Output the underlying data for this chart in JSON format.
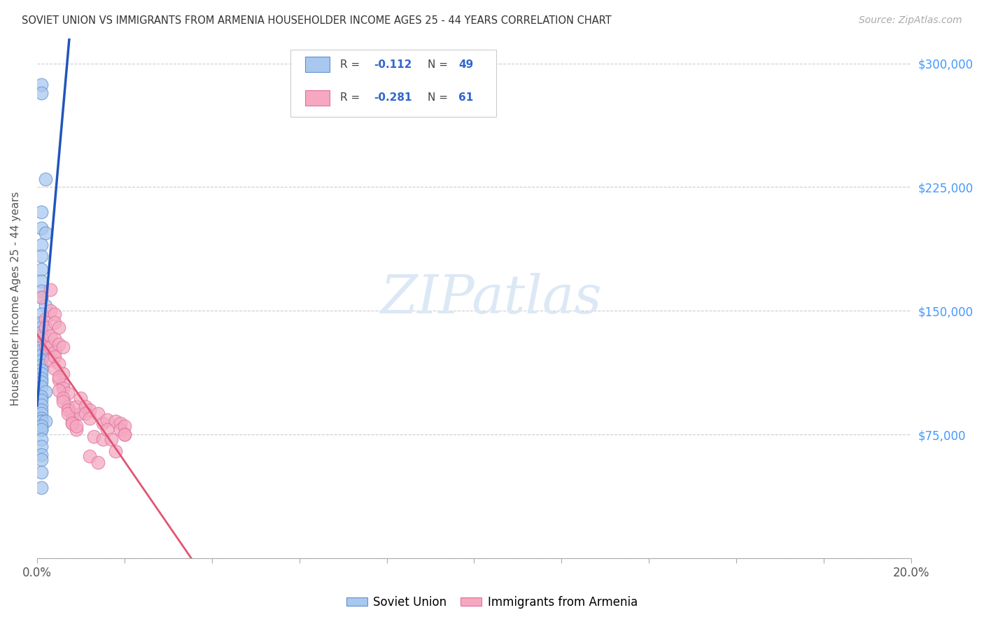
{
  "title": "SOVIET UNION VS IMMIGRANTS FROM ARMENIA HOUSEHOLDER INCOME AGES 25 - 44 YEARS CORRELATION CHART",
  "source": "Source: ZipAtlas.com",
  "ylabel": "Householder Income Ages 25 - 44 years",
  "legend1_label": "Soviet Union",
  "legend2_label": "Immigrants from Armenia",
  "legend1_R": "-0.112",
  "legend1_N": "49",
  "legend2_R": "-0.281",
  "legend2_N": "61",
  "blue_scatter_color": "#a8c8f0",
  "pink_scatter_color": "#f5a8c0",
  "blue_scatter_edge": "#6090d0",
  "pink_scatter_edge": "#e070a0",
  "blue_line_color": "#2255bb",
  "pink_line_color": "#e05575",
  "dashed_line_color": "#aabbdd",
  "ytick_color": "#4499ff",
  "grid_color": "#cccccc",
  "background_color": "#ffffff",
  "soviet_x": [
    0.001,
    0.001,
    0.002,
    0.001,
    0.001,
    0.002,
    0.001,
    0.001,
    0.001,
    0.001,
    0.001,
    0.001,
    0.002,
    0.001,
    0.001,
    0.001,
    0.001,
    0.001,
    0.001,
    0.001,
    0.001,
    0.001,
    0.001,
    0.001,
    0.001,
    0.001,
    0.001,
    0.001,
    0.001,
    0.002,
    0.001,
    0.001,
    0.001,
    0.001,
    0.001,
    0.001,
    0.001,
    0.001,
    0.001,
    0.001,
    0.002,
    0.001,
    0.001,
    0.001,
    0.001,
    0.001,
    0.001,
    0.001,
    0.001
  ],
  "soviet_y": [
    287000,
    282000,
    230000,
    210000,
    200000,
    197000,
    190000,
    183000,
    175000,
    168000,
    162000,
    158000,
    153000,
    148000,
    143000,
    140000,
    137000,
    133000,
    130000,
    128000,
    126000,
    123000,
    120000,
    117000,
    114000,
    112000,
    109000,
    107000,
    104000,
    101000,
    98000,
    96000,
    93000,
    90000,
    88000,
    85000,
    83000,
    80000,
    78000,
    83000,
    83000,
    80000,
    78000,
    72000,
    68000,
    63000,
    60000,
    52000,
    43000
  ],
  "armenia_x": [
    0.001,
    0.002,
    0.003,
    0.001,
    0.002,
    0.003,
    0.004,
    0.002,
    0.003,
    0.004,
    0.003,
    0.004,
    0.005,
    0.004,
    0.005,
    0.006,
    0.003,
    0.004,
    0.005,
    0.006,
    0.004,
    0.005,
    0.006,
    0.005,
    0.006,
    0.007,
    0.005,
    0.006,
    0.007,
    0.008,
    0.006,
    0.007,
    0.008,
    0.008,
    0.009,
    0.007,
    0.008,
    0.009,
    0.01,
    0.009,
    0.01,
    0.011,
    0.012,
    0.011,
    0.012,
    0.014,
    0.015,
    0.016,
    0.018,
    0.019,
    0.019,
    0.02,
    0.013,
    0.015,
    0.012,
    0.014,
    0.016,
    0.017,
    0.018,
    0.02,
    0.02
  ],
  "armenia_y": [
    158000,
    145000,
    163000,
    135000,
    140000,
    150000,
    148000,
    128000,
    135000,
    143000,
    128000,
    133000,
    140000,
    125000,
    130000,
    128000,
    120000,
    122000,
    118000,
    112000,
    115000,
    108000,
    105000,
    110000,
    103000,
    100000,
    102000,
    97000,
    92000,
    88000,
    95000,
    90000,
    84000,
    82000,
    78000,
    88000,
    82000,
    80000,
    88000,
    92000,
    97000,
    92000,
    90000,
    88000,
    85000,
    88000,
    82000,
    84000,
    83000,
    82000,
    78000,
    80000,
    74000,
    72000,
    62000,
    58000,
    78000,
    72000,
    65000,
    75000,
    75000
  ],
  "xlim": [
    0.0,
    0.2
  ],
  "ylim": [
    0,
    315000
  ],
  "yticks": [
    0,
    75000,
    150000,
    225000,
    300000
  ],
  "xtick_positions": [
    0.0,
    0.02,
    0.04,
    0.06,
    0.08,
    0.1,
    0.12,
    0.14,
    0.16,
    0.18,
    0.2
  ]
}
